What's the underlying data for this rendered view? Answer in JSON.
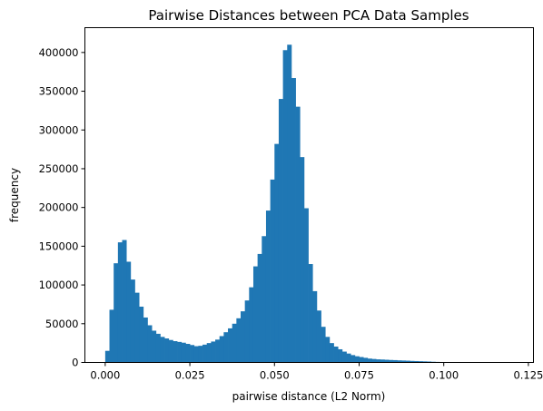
{
  "chart_data": {
    "type": "bar",
    "title": "Pairwise Distances between PCA Data Samples",
    "xlabel": "pairwise distance (L2 Norm)",
    "ylabel": "frequency",
    "xlim": [
      -0.006,
      0.1265
    ],
    "ylim": [
      0,
      432000
    ],
    "grid": false,
    "bar_color": "#1f77b4",
    "bin_width": 0.00125,
    "bin_start": 0.0,
    "values": [
      15000,
      68000,
      128000,
      155000,
      158000,
      130000,
      107000,
      90000,
      72000,
      58000,
      48000,
      41000,
      37000,
      33000,
      31000,
      29000,
      27500,
      26500,
      25500,
      24000,
      22500,
      21000,
      21500,
      23000,
      25000,
      27000,
      29500,
      34000,
      39000,
      44000,
      50000,
      57000,
      66000,
      80000,
      97000,
      124000,
      140000,
      163000,
      196000,
      236000,
      282000,
      340000,
      403000,
      410000,
      367000,
      330000,
      265000,
      199000,
      127000,
      92000,
      67000,
      46000,
      33000,
      25000,
      20500,
      17000,
      14000,
      11500,
      9500,
      8000,
      7000,
      6000,
      5000,
      4500,
      4000,
      3800,
      3500,
      3200,
      3000,
      2700,
      2500,
      2300,
      2000,
      1800,
      1600,
      1400,
      1200,
      900,
      700,
      500,
      300,
      200,
      150,
      100,
      80,
      60,
      40,
      30,
      20,
      15,
      12,
      10,
      8,
      6,
      5,
      4,
      3,
      2,
      2,
      1
    ],
    "x_ticks": [
      0.0,
      0.025,
      0.05,
      0.075,
      0.1,
      0.125
    ],
    "x_tick_labels": [
      "0.000",
      "0.025",
      "0.050",
      "0.075",
      "0.100",
      "0.125"
    ],
    "y_ticks": [
      0,
      50000,
      100000,
      150000,
      200000,
      250000,
      300000,
      350000,
      400000
    ],
    "y_tick_labels": [
      "0",
      "50000",
      "100000",
      "150000",
      "200000",
      "250000",
      "300000",
      "350000",
      "400000"
    ]
  }
}
